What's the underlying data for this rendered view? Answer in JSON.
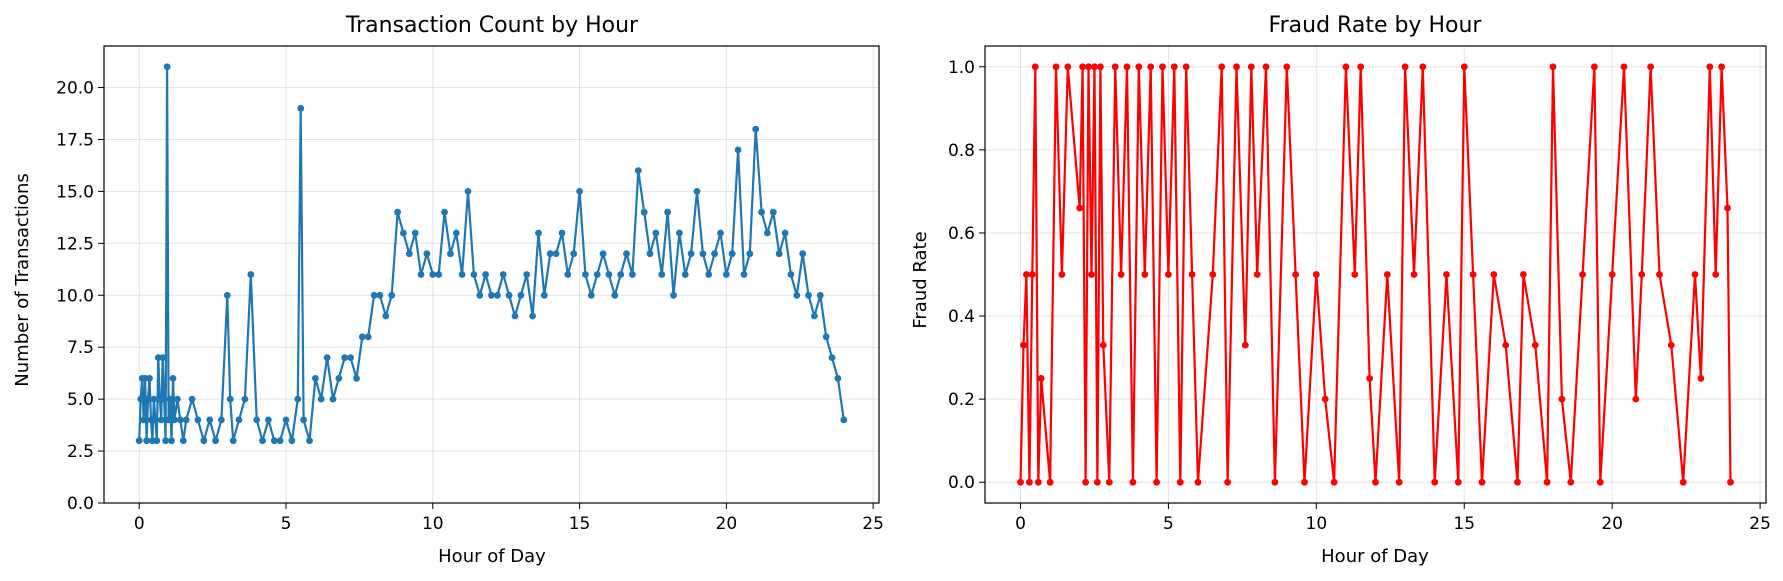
{
  "chart_data": [
    {
      "type": "line",
      "title": "Transaction Count by Hour",
      "xlabel": "Hour of Day",
      "ylabel": "Number of Transactions",
      "xlim": [
        -1.2,
        25.2
      ],
      "ylim": [
        0,
        22
      ],
      "xticks": [
        0,
        5,
        10,
        15,
        20,
        25
      ],
      "xtick_labels": [
        "0",
        "5",
        "10",
        "15",
        "20",
        "25"
      ],
      "yticks": [
        0,
        2.5,
        5,
        7.5,
        10,
        12.5,
        15,
        17.5,
        20
      ],
      "ytick_labels": [
        "0.0",
        "2.5",
        "5.0",
        "7.5",
        "10.0",
        "12.5",
        "15.0",
        "17.5",
        "20.0"
      ],
      "grid": true,
      "marker": "circle",
      "color": "#1f77b4",
      "series": [
        {
          "x": [
            0,
            0.05,
            0.1,
            0.15,
            0.2,
            0.25,
            0.3,
            0.35,
            0.4,
            0.45,
            0.5,
            0.55,
            0.6,
            0.65,
            0.7,
            0.75,
            0.8,
            0.85,
            0.9,
            0.95,
            1.0,
            1.05,
            1.1,
            1.15,
            1.2,
            1.3,
            1.4,
            1.5,
            1.6,
            1.8,
            2.0,
            2.2,
            2.4,
            2.6,
            2.8,
            3.0,
            3.1,
            3.2,
            3.4,
            3.6,
            3.8,
            4.0,
            4.2,
            4.4,
            4.6,
            4.8,
            5.0,
            5.2,
            5.4,
            5.5,
            5.6,
            5.8,
            6.0,
            6.2,
            6.4,
            6.6,
            6.8,
            7.0,
            7.2,
            7.4,
            7.6,
            7.8,
            8.0,
            8.2,
            8.4,
            8.6,
            8.8,
            9.0,
            9.2,
            9.4,
            9.6,
            9.8,
            10.0,
            10.2,
            10.4,
            10.6,
            10.8,
            11.0,
            11.2,
            11.4,
            11.6,
            11.8,
            12.0,
            12.2,
            12.4,
            12.6,
            12.8,
            13.0,
            13.2,
            13.4,
            13.6,
            13.8,
            14.0,
            14.2,
            14.4,
            14.6,
            14.8,
            15.0,
            15.2,
            15.4,
            15.6,
            15.8,
            16.0,
            16.2,
            16.4,
            16.6,
            16.8,
            17.0,
            17.2,
            17.4,
            17.6,
            17.8,
            18.0,
            18.2,
            18.4,
            18.6,
            18.8,
            19.0,
            19.2,
            19.4,
            19.6,
            19.8,
            20.0,
            20.2,
            20.4,
            20.6,
            20.8,
            21.0,
            21.2,
            21.4,
            21.6,
            21.8,
            22.0,
            22.2,
            22.4,
            22.6,
            22.8,
            23.0,
            23.2,
            23.4,
            23.6,
            23.8,
            24.0
          ],
          "y": [
            3,
            5,
            6,
            4,
            6,
            3,
            5,
            6,
            4,
            3,
            5,
            4,
            3,
            7,
            5,
            4,
            7,
            5,
            3,
            21,
            4,
            5,
            3,
            6,
            4,
            5,
            4,
            3,
            4,
            5,
            4,
            3,
            4,
            3,
            4,
            10,
            5,
            3,
            4,
            5,
            11,
            4,
            3,
            4,
            3,
            3,
            4,
            3,
            5,
            19,
            4,
            3,
            6,
            5,
            7,
            5,
            6,
            7,
            7,
            6,
            8,
            8,
            10,
            10,
            9,
            10,
            14,
            13,
            12,
            13,
            11,
            12,
            11,
            11,
            14,
            12,
            13,
            11,
            15,
            11,
            10,
            11,
            10,
            10,
            11,
            10,
            9,
            10,
            11,
            9,
            13,
            10,
            12,
            12,
            13,
            11,
            12,
            15,
            11,
            10,
            11,
            12,
            11,
            10,
            11,
            12,
            11,
            16,
            14,
            12,
            13,
            11,
            14,
            10,
            13,
            11,
            12,
            15,
            12,
            11,
            12,
            13,
            11,
            12,
            17,
            11,
            12,
            18,
            14,
            13,
            14,
            12,
            13,
            11,
            10,
            12,
            10,
            9,
            10,
            8,
            7,
            6,
            4
          ]
        }
      ]
    },
    {
      "type": "line",
      "title": "Fraud Rate by Hour",
      "xlabel": "Hour of Day",
      "ylabel": "Fraud Rate",
      "xlim": [
        -1.2,
        25.2
      ],
      "ylim": [
        -0.05,
        1.05
      ],
      "xticks": [
        0,
        5,
        10,
        15,
        20,
        25
      ],
      "xtick_labels": [
        "0",
        "5",
        "10",
        "15",
        "20",
        "25"
      ],
      "yticks": [
        0,
        0.2,
        0.4,
        0.6,
        0.8,
        1.0
      ],
      "ytick_labels": [
        "0.0",
        "0.2",
        "0.4",
        "0.6",
        "0.8",
        "1.0"
      ],
      "grid": true,
      "marker": "circle",
      "color": "#ff0000",
      "series": [
        {
          "x": [
            0,
            0.1,
            0.2,
            0.3,
            0.4,
            0.5,
            0.6,
            0.7,
            1.0,
            1.2,
            1.4,
            1.6,
            2.0,
            2.1,
            2.2,
            2.3,
            2.4,
            2.5,
            2.6,
            2.7,
            2.8,
            3.0,
            3.2,
            3.4,
            3.6,
            3.8,
            4.0,
            4.2,
            4.4,
            4.6,
            4.8,
            5.0,
            5.2,
            5.4,
            5.6,
            5.8,
            6.0,
            6.5,
            6.8,
            7.0,
            7.3,
            7.6,
            7.8,
            8.0,
            8.3,
            8.6,
            9.0,
            9.3,
            9.6,
            10.0,
            10.3,
            10.6,
            11.0,
            11.3,
            11.5,
            11.8,
            12.0,
            12.4,
            12.8,
            13.0,
            13.3,
            13.6,
            14.0,
            14.4,
            14.8,
            15.0,
            15.3,
            15.6,
            16.0,
            16.4,
            16.8,
            17.0,
            17.4,
            17.8,
            18.0,
            18.3,
            18.6,
            19.0,
            19.4,
            19.6,
            20.0,
            20.4,
            20.8,
            21.0,
            21.3,
            21.6,
            22.0,
            22.4,
            22.8,
            23.0,
            23.3,
            23.5,
            23.7,
            23.9,
            24.0
          ],
          "y": [
            0,
            0.33,
            0.5,
            0,
            0.5,
            1.0,
            0,
            0.25,
            0,
            1.0,
            0.5,
            1.0,
            0.66,
            1.0,
            0,
            1.0,
            0.5,
            1.0,
            0,
            1.0,
            0.33,
            0,
            1.0,
            0.5,
            1.0,
            0,
            1.0,
            0.5,
            1.0,
            0,
            1.0,
            0.5,
            1.0,
            0,
            1.0,
            0.5,
            0,
            0.5,
            1.0,
            0,
            1.0,
            0.33,
            1.0,
            0.5,
            1.0,
            0,
            1.0,
            0.5,
            0,
            0.5,
            0.2,
            0,
            1.0,
            0.5,
            1.0,
            0.25,
            0,
            0.5,
            0,
            1.0,
            0.5,
            1.0,
            0,
            0.5,
            0,
            1.0,
            0.5,
            0,
            0.5,
            0.33,
            0,
            0.5,
            0.33,
            0,
            1.0,
            0.2,
            0,
            0.5,
            1.0,
            0,
            0.5,
            1.0,
            0.2,
            0.5,
            1.0,
            0.5,
            0.33,
            0,
            0.5,
            0.25,
            1.0,
            0.5,
            1.0,
            0.66,
            0
          ]
        }
      ]
    }
  ]
}
